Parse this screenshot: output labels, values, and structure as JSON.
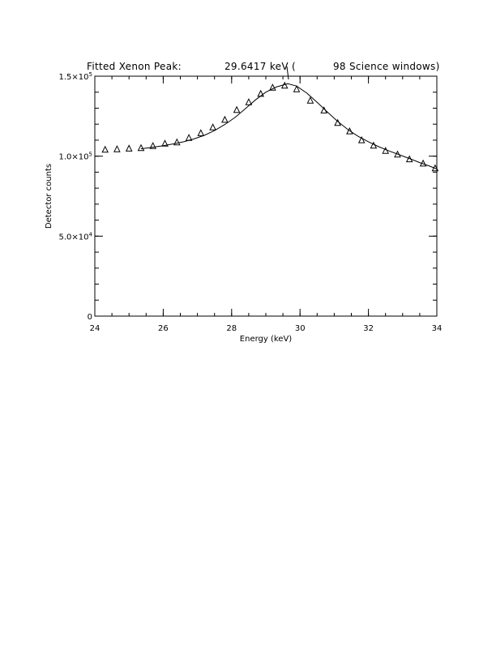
{
  "chart_data": {
    "type": "scatter",
    "title": {
      "part1": "Fitted Xenon Peak:",
      "part2": "29.6417 keV (",
      "part3": "98 Science windows)"
    },
    "xlabel": "Energy (keV)",
    "ylabel": "Detector counts",
    "xlim": [
      24,
      34
    ],
    "ylim": [
      0,
      150000
    ],
    "x_ticks": [
      {
        "value": 24,
        "label": "24"
      },
      {
        "value": 26,
        "label": "26"
      },
      {
        "value": 28,
        "label": "28"
      },
      {
        "value": 30,
        "label": "30"
      },
      {
        "value": 32,
        "label": "32"
      },
      {
        "value": 34,
        "label": "34"
      }
    ],
    "y_ticks": [
      {
        "value": 0,
        "label": "0",
        "exp": ""
      },
      {
        "value": 50000,
        "label": "5.0×10",
        "exp": "4"
      },
      {
        "value": 100000,
        "label": "1.0×10",
        "exp": "5"
      },
      {
        "value": 150000,
        "label": "1.5×10",
        "exp": "5"
      }
    ],
    "x_minor_step": 0.5,
    "y_minor_step": 10000,
    "fit_peak_marker": 29.64,
    "series": [
      {
        "type": "scatter",
        "marker": "triangle",
        "x": [
          24.3,
          24.65,
          25.0,
          25.35,
          25.7,
          26.05,
          26.4,
          26.75,
          27.1,
          27.45,
          27.8,
          28.15,
          28.5,
          28.85,
          29.2,
          29.55,
          29.9,
          30.3,
          30.7,
          31.1,
          31.45,
          31.8,
          32.15,
          32.5,
          32.85,
          33.2,
          33.6,
          33.95
        ],
        "y": [
          104000,
          104300,
          104700,
          105000,
          106300,
          107800,
          108600,
          111400,
          114300,
          117900,
          122700,
          128800,
          133700,
          138900,
          142800,
          144000,
          141800,
          134700,
          128500,
          120700,
          115500,
          109900,
          106500,
          103300,
          101000,
          98000,
          95300,
          92400
        ]
      },
      {
        "type": "line",
        "x": [
          25.35,
          25.7,
          26.0,
          26.3,
          26.6,
          26.9,
          27.2,
          27.5,
          27.8,
          28.1,
          28.4,
          28.7,
          29.0,
          29.3,
          29.64,
          29.9,
          30.2,
          30.5,
          30.8,
          31.1,
          31.4,
          31.7,
          32.0,
          32.3,
          32.6,
          32.9,
          33.2,
          33.5,
          33.8,
          34.0
        ],
        "y": [
          104600,
          105600,
          106500,
          107700,
          109000,
          110800,
          113000,
          116000,
          119800,
          124200,
          129700,
          135200,
          140000,
          143200,
          145300,
          143800,
          139400,
          133700,
          127600,
          121700,
          116600,
          112400,
          109000,
          105900,
          103300,
          100900,
          98500,
          96000,
          93700,
          92000
        ]
      }
    ]
  }
}
